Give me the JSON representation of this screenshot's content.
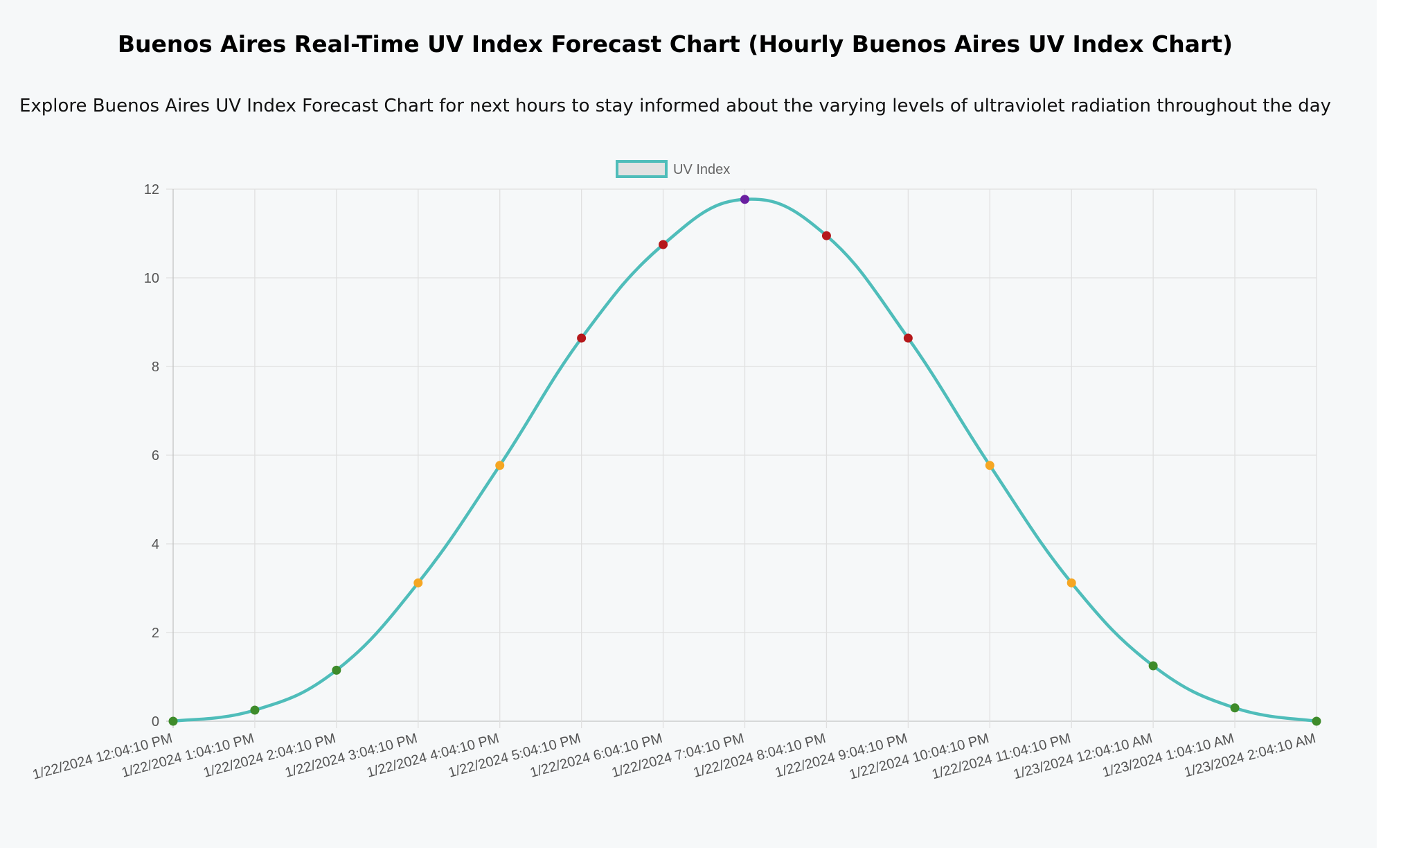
{
  "header": {
    "title": "Buenos Aires Real-Time UV Index Forecast Chart (Hourly Buenos Aires UV Index Chart)",
    "subtitle": "Explore Buenos Aires UV Index Forecast Chart for next hours to stay informed about the varying levels of ultraviolet radiation throughout the day"
  },
  "chart_data": {
    "type": "line",
    "title": "",
    "xlabel": "",
    "ylabel": "",
    "ylim": [
      0,
      12
    ],
    "yticks": [
      0,
      2,
      4,
      6,
      8,
      10,
      12
    ],
    "grid": true,
    "legend_position": "top-center",
    "categories": [
      "1/22/2024 12:04:10 PM",
      "1/22/2024 1:04:10 PM",
      "1/22/2024 2:04:10 PM",
      "1/22/2024 3:04:10 PM",
      "1/22/2024 4:04:10 PM",
      "1/22/2024 5:04:10 PM",
      "1/22/2024 6:04:10 PM",
      "1/22/2024 7:04:10 PM",
      "1/22/2024 8:04:10 PM",
      "1/22/2024 9:04:10 PM",
      "1/22/2024 10:04:10 PM",
      "1/22/2024 11:04:10 PM",
      "1/23/2024 12:04:10 AM",
      "1/23/2024 1:04:10 AM",
      "1/23/2024 2:04:10 AM"
    ],
    "series": [
      {
        "name": "UV Index",
        "color": "#4fbdba",
        "values": [
          0,
          0.25,
          1.15,
          3.12,
          5.77,
          8.64,
          10.75,
          11.77,
          10.95,
          8.64,
          5.77,
          3.12,
          1.25,
          0.3,
          0
        ],
        "point_colors": [
          "#3e8b2a",
          "#3e8b2a",
          "#3e8b2a",
          "#f5a623",
          "#f5a623",
          "#b5181b",
          "#b5181b",
          "#6a1fa0",
          "#b5181b",
          "#b5181b",
          "#f5a623",
          "#f5a623",
          "#3e8b2a",
          "#3e8b2a",
          "#3e8b2a"
        ]
      }
    ]
  }
}
